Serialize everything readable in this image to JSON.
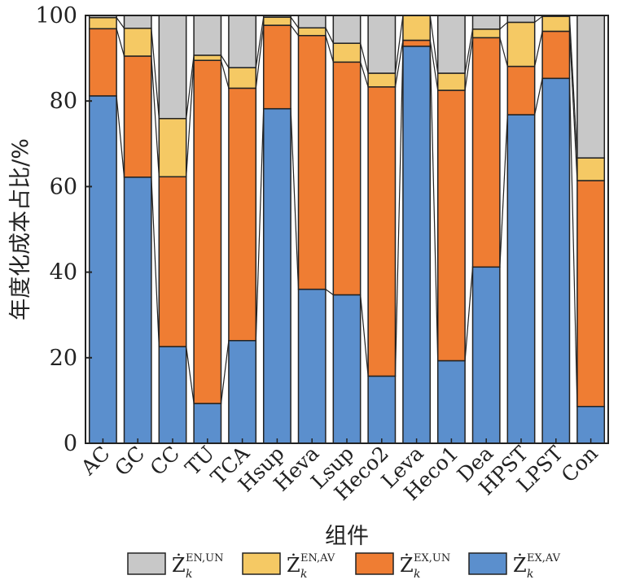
{
  "chart_data": {
    "type": "bar",
    "stacked": true,
    "xlabel": "组件",
    "ylabel": "年度化成本占比/%",
    "ylim": [
      0,
      100
    ],
    "yticks": [
      0,
      20,
      40,
      60,
      80,
      100
    ],
    "categories": [
      "AC",
      "GC",
      "CC",
      "TU",
      "TCA",
      "Hsup",
      "Heva",
      "Lsup",
      "Heco2",
      "Leva",
      "Heco1",
      "Dea",
      "HPST",
      "LPST",
      "Con"
    ],
    "series": [
      {
        "key": "ex_av",
        "base": "Ż",
        "sub": "k",
        "sup": "EX,AV",
        "color": "#5b8fcd",
        "values": [
          81.2,
          62.2,
          22.6,
          9.3,
          24.0,
          78.2,
          36.0,
          34.7,
          15.7,
          92.8,
          19.3,
          41.2,
          76.8,
          85.3,
          8.6
        ]
      },
      {
        "key": "ex_un",
        "base": "Ż",
        "sub": "k",
        "sup": "EX,UN",
        "color": "#ef7d33",
        "values": [
          15.7,
          28.3,
          39.7,
          80.2,
          59.0,
          19.5,
          59.3,
          54.4,
          67.6,
          1.4,
          63.2,
          53.6,
          11.3,
          11.0,
          52.8
        ]
      },
      {
        "key": "en_av",
        "base": "Ż",
        "sub": "k",
        "sup": "EN,AV",
        "color": "#f5c964",
        "values": [
          2.6,
          6.5,
          13.6,
          1.2,
          4.8,
          1.9,
          1.8,
          4.4,
          3.2,
          5.8,
          4.0,
          2.0,
          10.3,
          3.5,
          5.3
        ]
      },
      {
        "key": "en_un",
        "base": "Ż",
        "sub": "k",
        "sup": "EN,UN",
        "color": "#c8c8c8",
        "values": [
          0.5,
          3.0,
          24.1,
          9.3,
          12.2,
          0.4,
          2.9,
          6.5,
          13.5,
          0.0,
          13.5,
          3.2,
          1.6,
          0.2,
          33.3
        ]
      }
    ],
    "legend_order": [
      "en_un",
      "en_av",
      "ex_un",
      "ex_av"
    ],
    "legend_placement": "bottom"
  }
}
